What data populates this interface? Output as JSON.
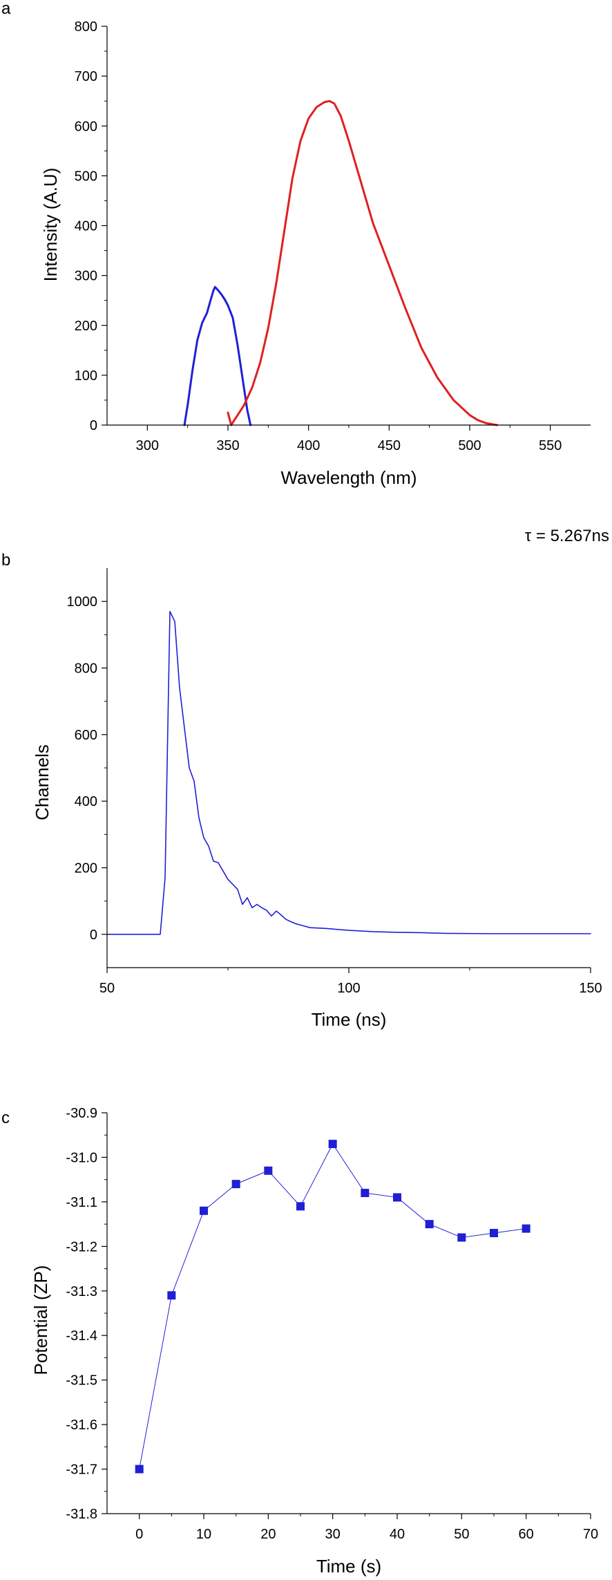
{
  "chart_data": [
    {
      "type": "line",
      "panel_label": "a",
      "xlabel": "Wavelength (nm)",
      "ylabel": "Intensity (A.U)",
      "xlim": [
        275,
        575
      ],
      "ylim": [
        0,
        800
      ],
      "xticks": [
        300,
        350,
        400,
        450,
        500,
        550
      ],
      "yticks": [
        0,
        100,
        200,
        300,
        400,
        500,
        600,
        700,
        800
      ],
      "grid": false,
      "series": [
        {
          "color": "#1f1fd6",
          "x": [
            323,
            325,
            328,
            331,
            334,
            337,
            339,
            341,
            342,
            344,
            346,
            348,
            350,
            353,
            356,
            359,
            362,
            364
          ],
          "y": [
            0,
            40,
            110,
            170,
            205,
            225,
            248,
            270,
            277,
            270,
            262,
            252,
            240,
            215,
            160,
            95,
            30,
            0
          ]
        },
        {
          "color": "#e01f1f",
          "x": [
            350,
            352,
            355,
            360,
            365,
            370,
            375,
            380,
            385,
            390,
            395,
            400,
            405,
            410,
            413,
            416,
            420,
            425,
            430,
            435,
            440,
            450,
            460,
            470,
            480,
            490,
            500,
            505,
            510,
            515,
            517
          ],
          "y": [
            25,
            0,
            15,
            40,
            75,
            125,
            195,
            285,
            390,
            495,
            570,
            615,
            638,
            648,
            650,
            645,
            620,
            570,
            515,
            460,
            405,
            320,
            235,
            155,
            95,
            50,
            20,
            10,
            4,
            1,
            0
          ]
        }
      ]
    },
    {
      "type": "line",
      "panel_label": "b",
      "annotation": "τ = 5.267ns",
      "xlabel": "Time (ns)",
      "ylabel": "Channels",
      "xlim": [
        50,
        150
      ],
      "ylim": [
        -100,
        1100
      ],
      "xticks": [
        50,
        100,
        150
      ],
      "yticks": [
        0,
        200,
        400,
        600,
        800,
        1000
      ],
      "grid": false,
      "series": [
        {
          "color": "#1f1fd6",
          "x": [
            50,
            61,
            62,
            63,
            64,
            65,
            66,
            67,
            68,
            69,
            70,
            71,
            72,
            73,
            74,
            75,
            76,
            77,
            78,
            79,
            80,
            81,
            82,
            83,
            84,
            85,
            86,
            87,
            88,
            89,
            90,
            92,
            95,
            100,
            105,
            110,
            115,
            120,
            130,
            140,
            150
          ],
          "y": [
            0,
            0,
            170,
            970,
            940,
            740,
            620,
            500,
            460,
            350,
            290,
            265,
            220,
            215,
            190,
            165,
            150,
            135,
            90,
            110,
            80,
            90,
            80,
            72,
            55,
            70,
            58,
            45,
            38,
            32,
            28,
            20,
            18,
            12,
            8,
            6,
            5,
            3,
            2,
            2,
            2
          ]
        }
      ]
    },
    {
      "type": "line",
      "panel_label": "c",
      "xlabel": "Time (s)",
      "ylabel": "Potential (ZP)",
      "xlim": [
        -5,
        70
      ],
      "ylim": [
        -31.8,
        -30.9
      ],
      "xticks": [
        0,
        10,
        20,
        30,
        40,
        50,
        60,
        70
      ],
      "yticks": [
        -31.8,
        -31.7,
        -31.6,
        -31.5,
        -31.4,
        -31.3,
        -31.2,
        -31.1,
        -31.0,
        -30.9
      ],
      "ytick_labels": [
        "-31.8",
        "-31.7",
        "-31.6",
        "-31.5",
        "-31.4",
        "-31.3",
        "-31.2",
        "-31.1",
        "-31.0",
        "-30.9"
      ],
      "grid": false,
      "marker": "square",
      "series": [
        {
          "color": "#1f1fd6",
          "x": [
            0,
            5,
            10,
            15,
            20,
            25,
            30,
            35,
            40,
            45,
            50,
            55,
            60
          ],
          "y": [
            -31.7,
            -31.31,
            -31.12,
            -31.06,
            -31.03,
            -31.11,
            -30.97,
            -31.08,
            -31.09,
            -31.15,
            -31.18,
            -31.17,
            -31.16
          ]
        }
      ]
    }
  ]
}
